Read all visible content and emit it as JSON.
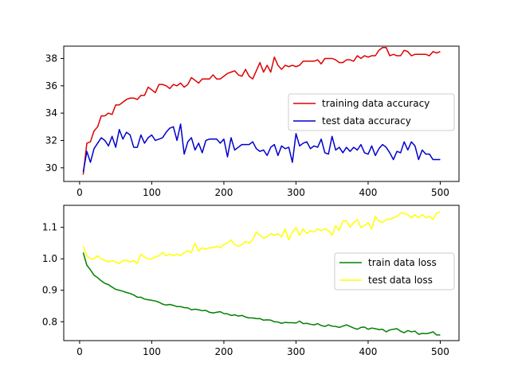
{
  "chart_data": [
    {
      "type": "line",
      "title": "",
      "xlabel": "",
      "ylabel": "",
      "xlim": [
        -22,
        526
      ],
      "ylim": [
        29.0,
        38.9
      ],
      "xticks": [
        0,
        100,
        200,
        300,
        400,
        500
      ],
      "yticks": [
        30,
        32,
        34,
        36,
        38
      ],
      "legend_position": "center-right",
      "grid": false,
      "series": [
        {
          "name": "training data accuracy",
          "color": "#dd0000",
          "x": [
            5,
            10,
            15,
            20,
            25,
            30,
            35,
            40,
            45,
            50,
            55,
            60,
            65,
            70,
            75,
            80,
            85,
            90,
            95,
            100,
            105,
            110,
            115,
            120,
            125,
            130,
            135,
            140,
            145,
            150,
            155,
            160,
            165,
            170,
            175,
            180,
            185,
            190,
            195,
            200,
            205,
            210,
            215,
            220,
            225,
            230,
            235,
            240,
            245,
            250,
            255,
            260,
            265,
            270,
            275,
            280,
            285,
            290,
            295,
            300,
            305,
            310,
            315,
            320,
            325,
            330,
            335,
            340,
            345,
            350,
            355,
            360,
            365,
            370,
            375,
            380,
            385,
            390,
            395,
            400,
            405,
            410,
            415,
            420,
            425,
            430,
            435,
            440,
            445,
            450,
            455,
            460,
            465,
            470,
            475,
            480,
            485,
            490,
            495,
            500
          ],
          "values": [
            29.5,
            31.8,
            31.9,
            32.7,
            33.0,
            33.8,
            33.8,
            34.0,
            33.9,
            34.6,
            34.6,
            34.8,
            35.0,
            35.1,
            35.1,
            35.0,
            35.3,
            35.3,
            35.9,
            35.7,
            35.5,
            36.1,
            36.1,
            36.0,
            35.8,
            36.1,
            36.0,
            36.2,
            35.9,
            36.1,
            36.6,
            36.4,
            36.2,
            36.5,
            36.5,
            36.5,
            36.8,
            36.5,
            36.5,
            36.7,
            36.9,
            37.0,
            37.1,
            36.8,
            36.7,
            37.2,
            36.7,
            36.5,
            37.1,
            37.7,
            37.0,
            37.5,
            37.0,
            38.1,
            37.5,
            37.2,
            37.5,
            37.4,
            37.5,
            37.4,
            37.5,
            37.8,
            37.8,
            37.8,
            37.8,
            37.9,
            37.6,
            38.0,
            38.0,
            38.0,
            37.9,
            37.7,
            37.7,
            37.9,
            37.9,
            37.8,
            38.2,
            38.0,
            38.2,
            38.1,
            38.2,
            38.2,
            38.6,
            38.8,
            38.8,
            38.2,
            38.3,
            38.2,
            38.2,
            38.6,
            38.5,
            38.2,
            38.3,
            38.3,
            38.3,
            38.3,
            38.2,
            38.5,
            38.4,
            38.5
          ]
        },
        {
          "name": "test data accuracy",
          "color": "#0000cc",
          "x": [
            5,
            10,
            15,
            20,
            25,
            30,
            35,
            40,
            45,
            50,
            55,
            60,
            65,
            70,
            75,
            80,
            85,
            90,
            95,
            100,
            105,
            110,
            115,
            120,
            125,
            130,
            135,
            140,
            145,
            150,
            155,
            160,
            165,
            170,
            175,
            180,
            185,
            190,
            195,
            200,
            205,
            210,
            215,
            220,
            225,
            230,
            235,
            240,
            245,
            250,
            255,
            260,
            265,
            270,
            275,
            280,
            285,
            290,
            295,
            300,
            305,
            310,
            315,
            320,
            325,
            330,
            335,
            340,
            345,
            350,
            355,
            360,
            365,
            370,
            375,
            380,
            385,
            390,
            395,
            400,
            405,
            410,
            415,
            420,
            425,
            430,
            435,
            440,
            445,
            450,
            455,
            460,
            465,
            470,
            475,
            480,
            485,
            490,
            495,
            500
          ],
          "values": [
            29.7,
            31.2,
            30.4,
            31.4,
            31.8,
            32.2,
            32.0,
            31.6,
            32.3,
            31.5,
            32.8,
            32.1,
            32.6,
            32.4,
            31.5,
            31.5,
            32.4,
            31.8,
            32.2,
            32.4,
            32.0,
            32.1,
            32.2,
            32.6,
            32.9,
            33.0,
            32.0,
            33.2,
            31.0,
            31.9,
            32.2,
            31.3,
            31.8,
            31.1,
            32.0,
            32.1,
            32.1,
            32.1,
            31.8,
            32.1,
            30.8,
            32.2,
            31.3,
            31.5,
            31.7,
            31.7,
            31.7,
            31.9,
            31.4,
            31.2,
            31.3,
            30.9,
            31.5,
            31.7,
            30.9,
            31.6,
            31.4,
            31.5,
            30.4,
            32.5,
            31.6,
            31.8,
            31.9,
            31.4,
            31.6,
            31.5,
            32.1,
            31.1,
            31.0,
            32.3,
            31.3,
            31.5,
            31.1,
            31.5,
            31.2,
            31.5,
            31.3,
            31.7,
            31.1,
            31.0,
            31.6,
            30.9,
            31.4,
            31.7,
            31.5,
            31.1,
            30.6,
            31.2,
            31.1,
            31.9,
            31.3,
            31.9,
            31.6,
            30.6,
            31.3,
            31.0,
            31.0,
            30.6,
            30.6,
            30.6
          ]
        }
      ]
    },
    {
      "type": "line",
      "title": "",
      "xlabel": "",
      "ylabel": "",
      "xlim": [
        -22,
        526
      ],
      "ylim": [
        0.74,
        1.17
      ],
      "xticks": [
        0,
        100,
        200,
        300,
        400,
        500
      ],
      "yticks": [
        0.8,
        0.9,
        1.0,
        1.1
      ],
      "legend_position": "center-right",
      "grid": false,
      "series": [
        {
          "name": "train data loss",
          "color": "#008000",
          "x": [
            5,
            10,
            15,
            20,
            25,
            30,
            35,
            40,
            45,
            50,
            55,
            60,
            65,
            70,
            75,
            80,
            85,
            90,
            95,
            100,
            105,
            110,
            115,
            120,
            125,
            130,
            135,
            140,
            145,
            150,
            155,
            160,
            165,
            170,
            175,
            180,
            185,
            190,
            195,
            200,
            205,
            210,
            215,
            220,
            225,
            230,
            235,
            240,
            245,
            250,
            255,
            260,
            265,
            270,
            275,
            280,
            285,
            290,
            295,
            300,
            305,
            310,
            315,
            320,
            325,
            330,
            335,
            340,
            345,
            350,
            355,
            360,
            365,
            370,
            375,
            380,
            385,
            390,
            395,
            400,
            405,
            410,
            415,
            420,
            425,
            430,
            435,
            440,
            445,
            450,
            455,
            460,
            465,
            470,
            475,
            480,
            485,
            490,
            495,
            500
          ],
          "values": [
            1.02,
            0.98,
            0.965,
            0.948,
            0.94,
            0.93,
            0.922,
            0.918,
            0.91,
            0.903,
            0.9,
            0.897,
            0.893,
            0.89,
            0.885,
            0.878,
            0.878,
            0.872,
            0.87,
            0.868,
            0.866,
            0.862,
            0.856,
            0.853,
            0.855,
            0.852,
            0.848,
            0.848,
            0.845,
            0.844,
            0.838,
            0.84,
            0.838,
            0.835,
            0.836,
            0.83,
            0.828,
            0.83,
            0.832,
            0.826,
            0.825,
            0.82,
            0.822,
            0.818,
            0.82,
            0.815,
            0.812,
            0.812,
            0.81,
            0.81,
            0.805,
            0.806,
            0.805,
            0.8,
            0.799,
            0.795,
            0.798,
            0.797,
            0.797,
            0.796,
            0.802,
            0.794,
            0.795,
            0.792,
            0.79,
            0.794,
            0.788,
            0.785,
            0.79,
            0.786,
            0.785,
            0.782,
            0.786,
            0.79,
            0.785,
            0.78,
            0.776,
            0.782,
            0.783,
            0.776,
            0.78,
            0.778,
            0.775,
            0.776,
            0.768,
            0.774,
            0.776,
            0.778,
            0.77,
            0.765,
            0.772,
            0.768,
            0.77,
            0.76,
            0.763,
            0.762,
            0.764,
            0.768,
            0.758,
            0.758
          ]
        },
        {
          "name": "test data loss",
          "color": "#ffff00",
          "x": [
            5,
            10,
            15,
            20,
            25,
            30,
            35,
            40,
            45,
            50,
            55,
            60,
            65,
            70,
            75,
            80,
            85,
            90,
            95,
            100,
            105,
            110,
            115,
            120,
            125,
            130,
            135,
            140,
            145,
            150,
            155,
            160,
            165,
            170,
            175,
            180,
            185,
            190,
            195,
            200,
            205,
            210,
            215,
            220,
            225,
            230,
            235,
            240,
            245,
            250,
            255,
            260,
            265,
            270,
            275,
            280,
            285,
            290,
            295,
            300,
            305,
            310,
            315,
            320,
            325,
            330,
            335,
            340,
            345,
            350,
            355,
            360,
            365,
            370,
            375,
            380,
            385,
            390,
            395,
            400,
            405,
            410,
            415,
            420,
            425,
            430,
            435,
            440,
            445,
            450,
            455,
            460,
            465,
            470,
            475,
            480,
            485,
            490,
            495,
            500
          ],
          "values": [
            1.04,
            1.01,
            1.0,
            1.0,
            1.01,
            1.0,
            0.995,
            0.99,
            0.995,
            0.99,
            0.985,
            0.995,
            0.995,
            0.99,
            0.995,
            0.985,
            1.015,
            1.005,
            1.0,
            1.0,
            1.005,
            1.01,
            1.02,
            1.01,
            1.015,
            1.01,
            1.015,
            1.01,
            1.02,
            1.025,
            1.02,
            1.05,
            1.025,
            1.035,
            1.03,
            1.035,
            1.035,
            1.04,
            1.035,
            1.045,
            1.05,
            1.06,
            1.045,
            1.04,
            1.045,
            1.055,
            1.05,
            1.06,
            1.085,
            1.075,
            1.065,
            1.07,
            1.08,
            1.075,
            1.08,
            1.07,
            1.095,
            1.06,
            1.085,
            1.1,
            1.075,
            1.095,
            1.08,
            1.09,
            1.085,
            1.095,
            1.09,
            1.095,
            1.09,
            1.075,
            1.105,
            1.09,
            1.12,
            1.12,
            1.1,
            1.115,
            1.125,
            1.1,
            1.105,
            1.115,
            1.095,
            1.135,
            1.12,
            1.115,
            1.125,
            1.125,
            1.13,
            1.135,
            1.145,
            1.145,
            1.14,
            1.13,
            1.14,
            1.13,
            1.14,
            1.13,
            1.135,
            1.125,
            1.145,
            1.15
          ]
        }
      ]
    }
  ]
}
